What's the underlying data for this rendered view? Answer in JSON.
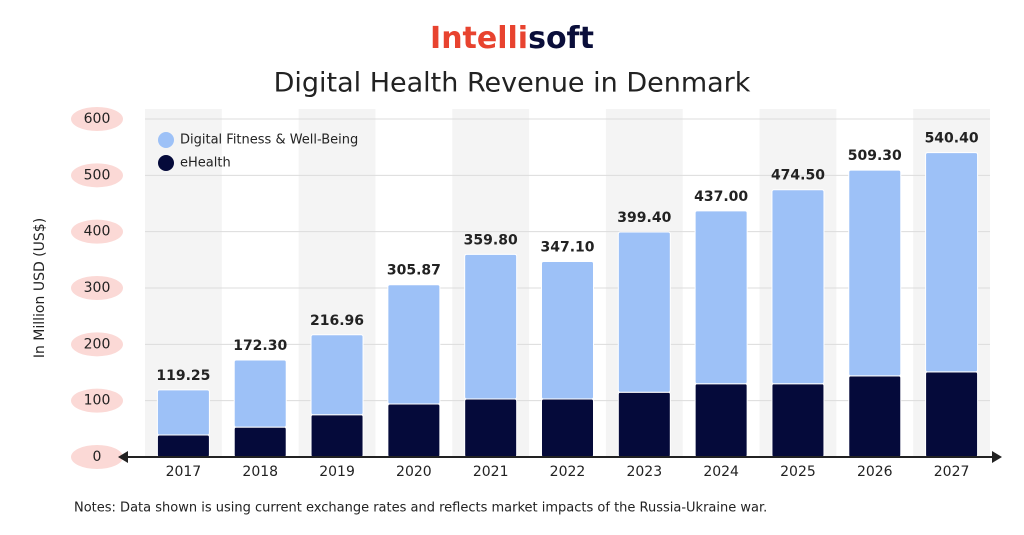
{
  "chart_data": {
    "type": "stacked-bar",
    "logo": {
      "part1": "Intelli",
      "part2": "soft"
    },
    "title": "Digital Health Revenue in Denmark",
    "y_label": "In Million USD (US$)",
    "note": "Notes: Data shown is using current exchange rates and reflects market impacts of the Russia-Ukraine war.",
    "categories": [
      "2017",
      "2018",
      "2019",
      "2020",
      "2021",
      "2022",
      "2023",
      "2024",
      "2025",
      "2026",
      "2027"
    ],
    "series": [
      {
        "name": "eHealth",
        "color": "#050a3a",
        "values": [
          39,
          53,
          75,
          94,
          103,
          103,
          115,
          130,
          130,
          144,
          151
        ]
      },
      {
        "name": "Digital Fitness & Well-Being",
        "color": "#9dc1f7",
        "values": [
          80.25,
          119.3,
          141.96,
          211.87,
          256.8,
          244.1,
          284.4,
          307,
          344.5,
          365.3,
          389.4
        ]
      }
    ],
    "totals": [
      119.25,
      172.3,
      216.96,
      305.87,
      359.8,
      347.1,
      399.4,
      437,
      474.5,
      509.3,
      540.4
    ],
    "total_labels": [
      "119.25",
      "172.30",
      "216.96",
      "305.87",
      "359.80",
      "347.10",
      "399.40",
      "437.00",
      "474.50",
      "509.30",
      "540.40"
    ],
    "ylim": [
      0,
      600
    ],
    "yticks": [
      0,
      100,
      200,
      300,
      400,
      500,
      600
    ],
    "grid": true
  }
}
